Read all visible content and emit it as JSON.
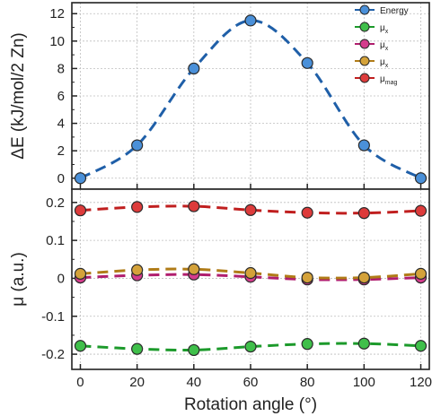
{
  "chart_data": {
    "type": "line",
    "x": [
      0,
      20,
      40,
      60,
      80,
      100,
      120
    ],
    "xlabel": "Rotation angle (°)",
    "xlim": [
      -3,
      123
    ],
    "xticks": [
      0,
      20,
      40,
      60,
      80,
      100,
      120
    ],
    "grid": true,
    "line_style": "dashed",
    "marker": "circle",
    "panels": [
      {
        "ylabel": "ΔE (kJ/mol/2 Zn)",
        "ylim": [
          -0.8,
          12.8
        ],
        "yticks": [
          0,
          2,
          4,
          6,
          8,
          10,
          12
        ],
        "legend": "top-right",
        "legend_items": [
          {
            "main": "Energy",
            "sub": "",
            "color": "#4a90d9",
            "line_color": "#1f5fa8"
          },
          {
            "main": "μ",
            "sub": "x",
            "color": "#3fbf4a",
            "line_color": "#1c9a2b"
          },
          {
            "main": "μ",
            "sub": "x",
            "color": "#d43c8c",
            "line_color": "#b01e6e"
          },
          {
            "main": "μ",
            "sub": "x",
            "color": "#d4a23a",
            "line_color": "#b07c18"
          },
          {
            "main": "μ",
            "sub": "mag",
            "color": "#dd3b3b",
            "line_color": "#c01f1f"
          }
        ],
        "series": [
          {
            "values": [
              0,
              2.4,
              8.0,
              11.5,
              8.4,
              2.4,
              0
            ],
            "color": "#4a90d9",
            "line_color": "#1f5fa8"
          }
        ]
      },
      {
        "ylabel": "μ (a.u.)",
        "ylim": [
          -0.24,
          0.235
        ],
        "yticks": [
          -0.2,
          -0.1,
          0,
          0.1,
          0.2
        ],
        "ytick_labels": [
          "-0.2",
          "-0.1",
          "0",
          "0.1",
          "0.2"
        ],
        "series": [
          {
            "values": [
              -0.178,
              -0.186,
              -0.189,
              -0.18,
              -0.173,
              -0.172,
              -0.178
            ],
            "color": "#3fbf4a",
            "line_color": "#1c9a2b"
          },
          {
            "values": [
              0.002,
              0.008,
              0.01,
              0.004,
              -0.003,
              -0.003,
              0.002
            ],
            "color": "#d43c8c",
            "line_color": "#b01e6e"
          },
          {
            "values": [
              0.012,
              0.022,
              0.024,
              0.014,
              0.002,
              0.002,
              0.012
            ],
            "color": "#d4a23a",
            "line_color": "#b07c18"
          },
          {
            "values": [
              0.179,
              0.188,
              0.19,
              0.18,
              0.173,
              0.172,
              0.178
            ],
            "color": "#dd3b3b",
            "line_color": "#c01f1f"
          }
        ]
      }
    ]
  }
}
